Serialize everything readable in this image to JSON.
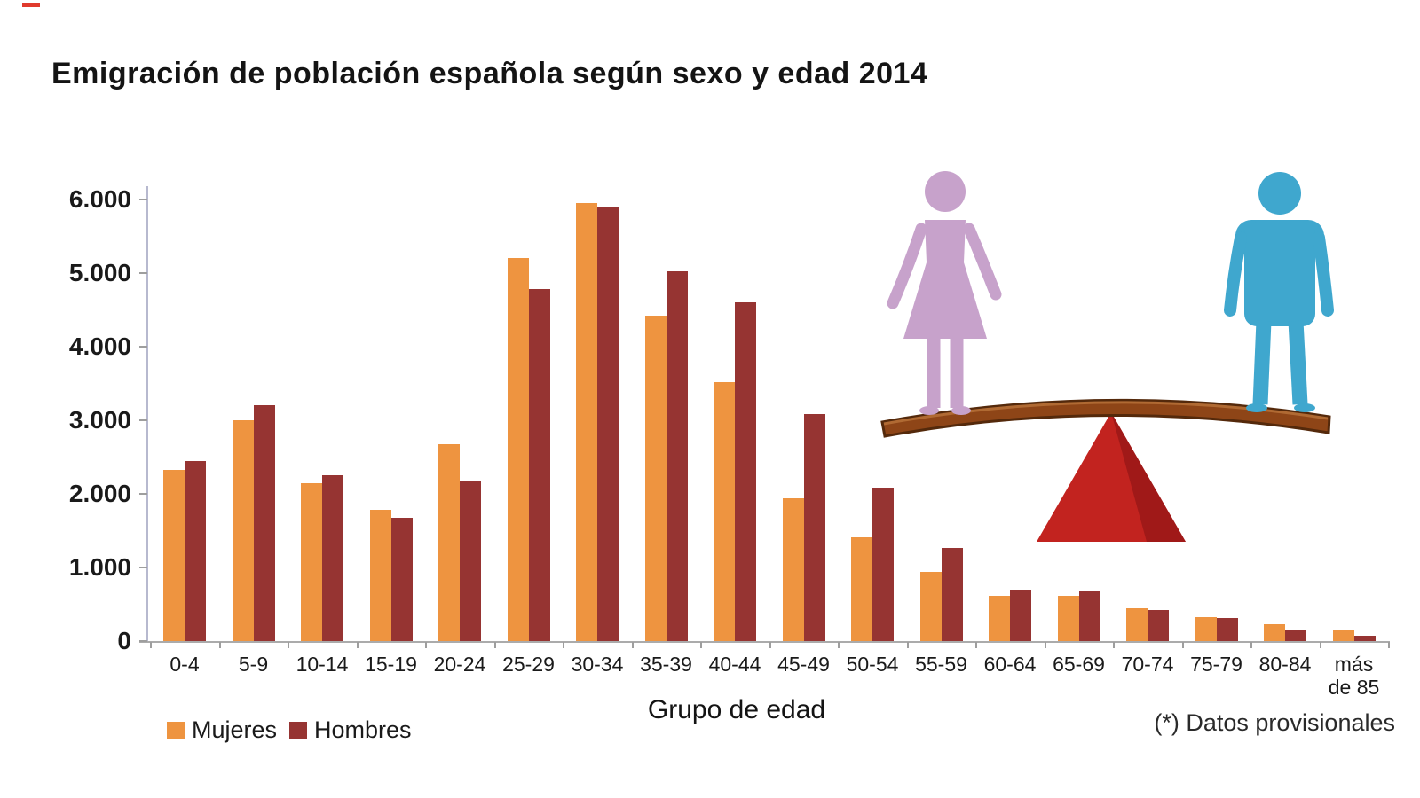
{
  "page": {
    "title": "Emigración de población española según sexo y edad 2014",
    "x_axis_title": "Grupo de edad",
    "footnote": "(*) Datos provisionales"
  },
  "legend": {
    "items": [
      {
        "label": "Mujeres",
        "color": "#EE9440"
      },
      {
        "label": "Hombres",
        "color": "#963432"
      }
    ]
  },
  "chart_data": {
    "type": "bar",
    "title": "Emigración de población española según sexo y edad 2014",
    "xlabel": "Grupo de edad",
    "ylabel": "",
    "categories": [
      "0-4",
      "5-9",
      "10-14",
      "15-19",
      "20-24",
      "25-29",
      "30-34",
      "35-39",
      "40-44",
      "45-49",
      "50-54",
      "55-59",
      "60-64",
      "65-69",
      "70-74",
      "75-79",
      "80-84",
      "más\nde 85"
    ],
    "series": [
      {
        "name": "Mujeres",
        "color": "#EE9440",
        "values": [
          2330,
          3000,
          2150,
          1780,
          2670,
          5200,
          5950,
          4420,
          3520,
          1940,
          1410,
          940,
          620,
          610,
          440,
          330,
          230,
          140
        ]
      },
      {
        "name": "Hombres",
        "color": "#963432",
        "values": [
          2450,
          3210,
          2250,
          1670,
          2180,
          4780,
          5900,
          5020,
          4600,
          3090,
          2090,
          1260,
          700,
          690,
          420,
          310,
          160,
          70
        ]
      }
    ],
    "ylim": [
      0,
      6000
    ],
    "ytick_labels": [
      "0",
      "1.000",
      "2.000",
      "3.000",
      "4.000",
      "5.000",
      "6.000"
    ],
    "grid": false,
    "legend_position": "bottom-left",
    "footnote": "(*) Datos provisionales"
  },
  "illustration": {
    "woman_color": "#C7A2CB",
    "man_color": "#3FA7CE",
    "plank_color": "#8E4517",
    "fulcrum_color": "#C2231F"
  }
}
